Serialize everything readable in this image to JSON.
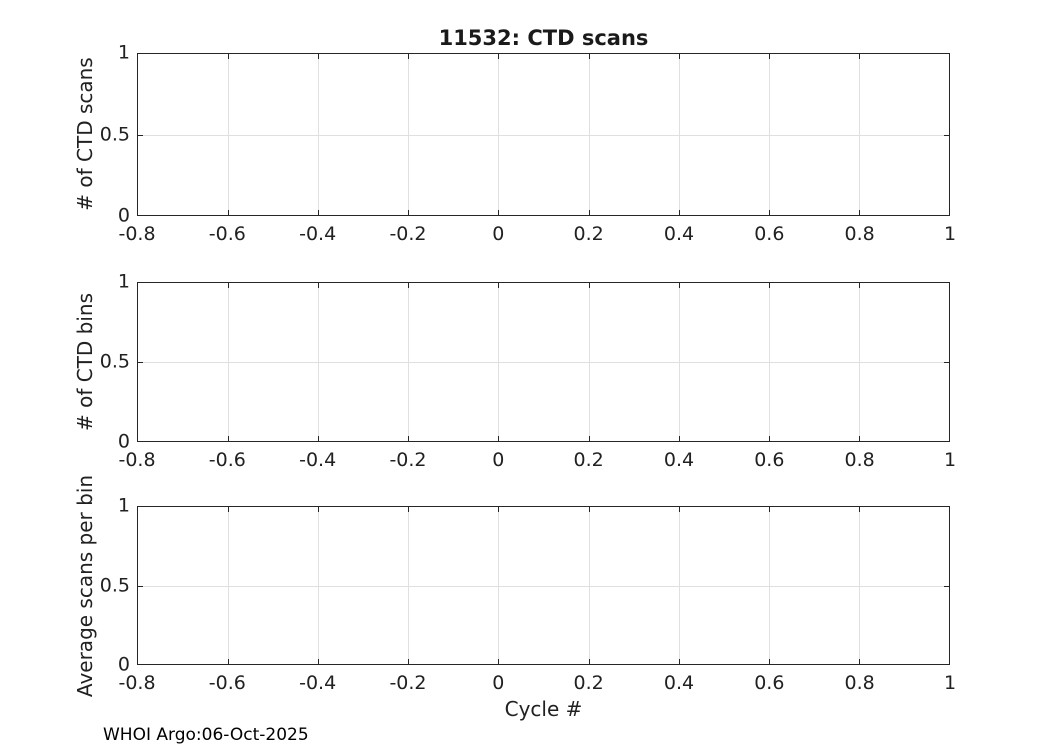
{
  "figure": {
    "title": "11532: CTD scans",
    "xlabel": "Cycle #",
    "footer": "WHOI Argo:06-Oct-2025"
  },
  "colors": {
    "axis": "#262626",
    "grid": "#e0e0e0",
    "text": "#212121",
    "background": "#ffffff"
  },
  "chart_data": [
    {
      "type": "line",
      "title": "11532: CTD scans",
      "ylabel": "# of CTD scans",
      "xlabel": "",
      "series": [],
      "xlim": [
        -0.8,
        1
      ],
      "ylim": [
        0,
        1
      ],
      "xticks": [
        -0.8,
        -0.6,
        -0.4,
        -0.2,
        0,
        0.2,
        0.4,
        0.6,
        0.8,
        1
      ],
      "xtick_labels": [
        "-0.8",
        "-0.6",
        "-0.4",
        "-0.2",
        "0",
        "0.2",
        "0.4",
        "0.6",
        "0.8",
        "1"
      ],
      "yticks": [
        0,
        0.5,
        1
      ],
      "ytick_labels": [
        "0",
        "0.5",
        "1"
      ],
      "grid": true,
      "legend": false
    },
    {
      "type": "line",
      "title": "",
      "ylabel": "# of CTD bins",
      "xlabel": "",
      "series": [],
      "xlim": [
        -0.8,
        1
      ],
      "ylim": [
        0,
        1
      ],
      "xticks": [
        -0.8,
        -0.6,
        -0.4,
        -0.2,
        0,
        0.2,
        0.4,
        0.6,
        0.8,
        1
      ],
      "xtick_labels": [
        "-0.8",
        "-0.6",
        "-0.4",
        "-0.2",
        "0",
        "0.2",
        "0.4",
        "0.6",
        "0.8",
        "1"
      ],
      "yticks": [
        0,
        0.5,
        1
      ],
      "ytick_labels": [
        "0",
        "0.5",
        "1"
      ],
      "grid": true,
      "legend": false
    },
    {
      "type": "line",
      "title": "",
      "ylabel": "Average scans per bin",
      "xlabel": "Cycle #",
      "series": [],
      "xlim": [
        -0.8,
        1
      ],
      "ylim": [
        0,
        1
      ],
      "xticks": [
        -0.8,
        -0.6,
        -0.4,
        -0.2,
        0,
        0.2,
        0.4,
        0.6,
        0.8,
        1
      ],
      "xtick_labels": [
        "-0.8",
        "-0.6",
        "-0.4",
        "-0.2",
        "0",
        "0.2",
        "0.4",
        "0.6",
        "0.8",
        "1"
      ],
      "yticks": [
        0,
        0.5,
        1
      ],
      "ytick_labels": [
        "0",
        "0.5",
        "1"
      ],
      "grid": true,
      "legend": false
    }
  ]
}
